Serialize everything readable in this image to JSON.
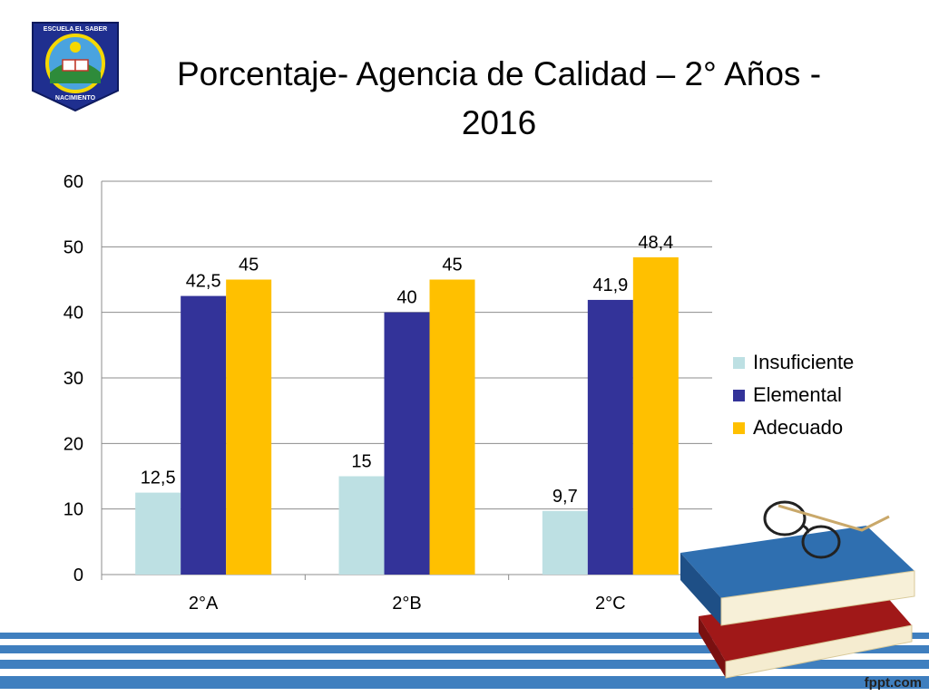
{
  "slide": {
    "logo_top_text": "ESCUELA EL SABER",
    "logo_bottom_text": "NACIMIENTO",
    "watermark": "fppt.com"
  },
  "chart_data": {
    "type": "bar",
    "title": "Porcentaje- Agencia de Calidad – 2° Años - 2016",
    "categories": [
      "2°A",
      "2°B",
      "2°C"
    ],
    "series": [
      {
        "name": "Insuficiente",
        "values": [
          12.5,
          15,
          9.7
        ],
        "labels": [
          "12,5",
          "15",
          "9,7"
        ],
        "color": "#BDE0E3"
      },
      {
        "name": "Elemental",
        "values": [
          42.5,
          40,
          41.9
        ],
        "labels": [
          "42,5",
          "40",
          "41,9"
        ],
        "color": "#333399"
      },
      {
        "name": "Adecuado",
        "values": [
          45,
          45,
          48.4
        ],
        "labels": [
          "45",
          "45",
          "48,4"
        ],
        "color": "#FFC000"
      }
    ],
    "ylim": [
      0,
      60
    ],
    "yticks": [
      0,
      10,
      20,
      30,
      40,
      50,
      60
    ],
    "grid": true,
    "legend": "right"
  }
}
